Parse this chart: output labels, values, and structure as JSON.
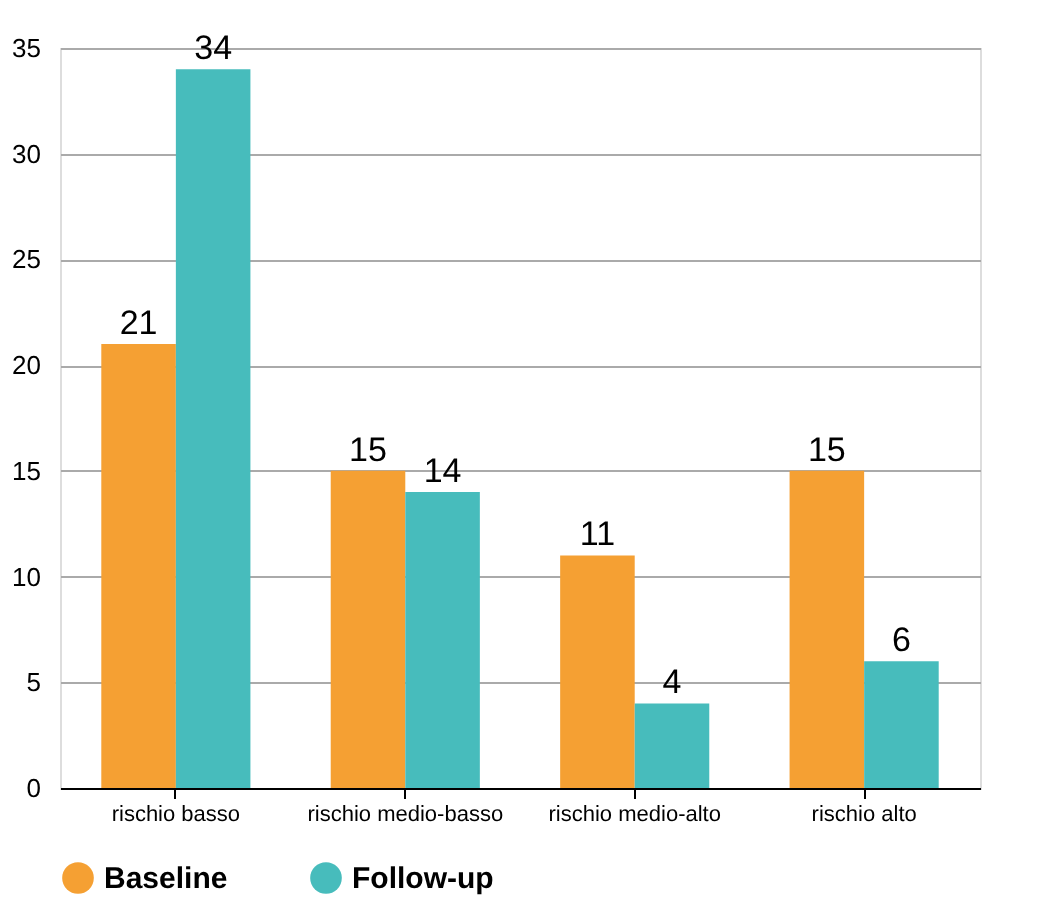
{
  "chart_data": {
    "type": "bar",
    "categories": [
      "rischio basso",
      "rischio medio-basso",
      "rischio medio-alto",
      "rischio alto"
    ],
    "series": [
      {
        "name": "Baseline",
        "color": "#f5a033",
        "values": [
          21,
          15,
          11,
          15
        ]
      },
      {
        "name": "Follow-up",
        "color": "#47bcbc",
        "values": [
          34,
          14,
          4,
          6
        ]
      }
    ],
    "ylim": [
      0,
      35
    ],
    "yticks": [
      0,
      5,
      10,
      15,
      20,
      25,
      30,
      35
    ],
    "grid": "y",
    "legend": "bottom",
    "data_labels": true
  }
}
